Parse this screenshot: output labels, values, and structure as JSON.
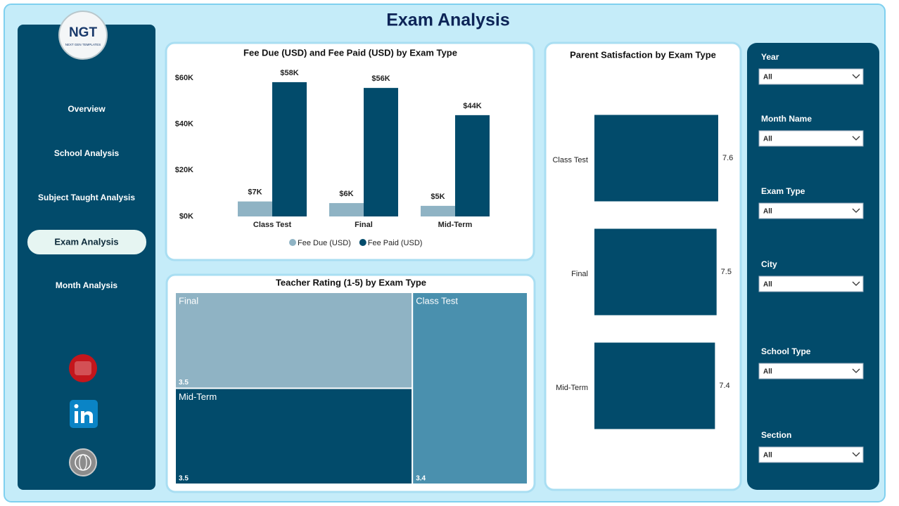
{
  "header": {
    "title": "Exam Analysis",
    "logo": "NGT",
    "logo_tagline": "NEXT GEN TEMPLATES"
  },
  "nav": [
    "Overview",
    "School Analysis",
    "Subject Taught Analysis",
    "Exam Analysis",
    "Month Analysis"
  ],
  "filters": [
    {
      "label": "Year",
      "value": "All"
    },
    {
      "label": "Month Name",
      "value": "All"
    },
    {
      "label": "Exam Type",
      "value": "All"
    },
    {
      "label": "City",
      "value": "All"
    },
    {
      "label": "School Type",
      "value": "All"
    },
    {
      "label": "Section",
      "value": "All"
    }
  ],
  "chart_data": [
    {
      "type": "bar",
      "title": "Fee Due (USD) and Fee Paid (USD) by Exam Type",
      "categories": [
        "Class Test",
        "Final",
        "Mid-Term"
      ],
      "series": [
        {
          "name": "Fee Due (USD)",
          "color": "#8fb3c4",
          "values": [
            6500,
            5800,
            4600
          ],
          "value_labels": [
            "$7K",
            "$6K",
            "$5K"
          ]
        },
        {
          "name": "Fee Paid (USD)",
          "color": "#024b6b",
          "values": [
            58200,
            55700,
            43900
          ],
          "value_labels": [
            "$58K",
            "$56K",
            "$44K"
          ]
        }
      ],
      "ylim": [
        0,
        60000
      ],
      "yticks": [
        {
          "value": 0,
          "label": "$0K"
        },
        {
          "value": 20000,
          "label": "$20K"
        },
        {
          "value": 40000,
          "label": "$40K"
        },
        {
          "value": 60000,
          "label": "$60K"
        }
      ],
      "legend": "bottom"
    },
    {
      "type": "treemap",
      "title": "Teacher Rating (1-5) by Exam Type",
      "categories": [
        "Final",
        "Mid-Term",
        "Class Test"
      ],
      "values": [
        3.5,
        3.5,
        3.4
      ],
      "colors": [
        "#8fb3c4",
        "#024b6b",
        "#4a90ae"
      ]
    },
    {
      "type": "hbar",
      "title": "Parent Satisfaction by Exam Type",
      "categories": [
        "Class Test",
        "Final",
        "Mid-Term"
      ],
      "values": [
        7.6,
        7.5,
        7.4
      ],
      "color": "#024b6b"
    }
  ]
}
